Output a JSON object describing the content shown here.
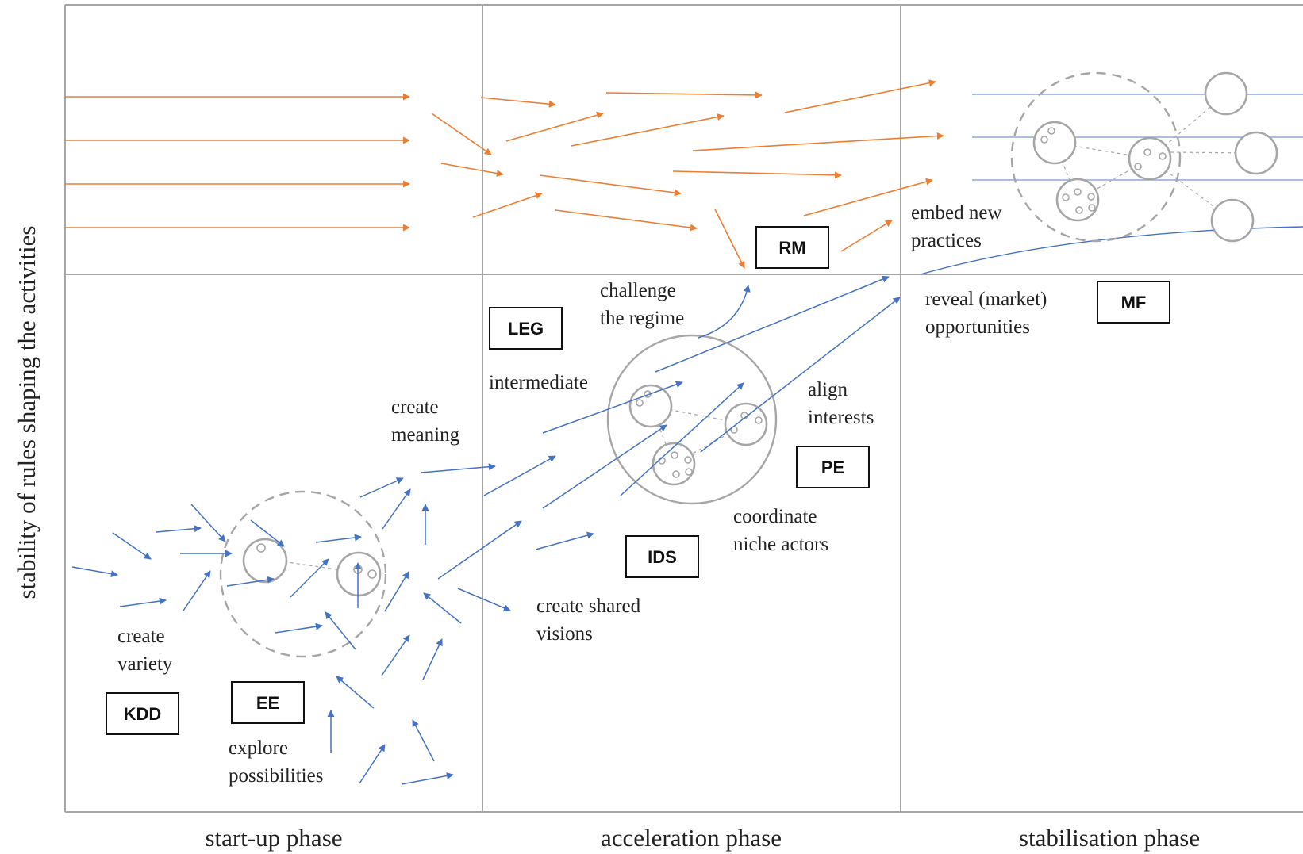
{
  "axes": {
    "y_label": "stability of rules shaping the activities",
    "phases": [
      "start-up phase",
      "acceleration phase",
      "stabilisation phase"
    ]
  },
  "boxes": {
    "kdd": "KDD",
    "ee": "EE",
    "leg": "LEG",
    "rm": "RM",
    "ids": "IDS",
    "pe": "PE",
    "mf": "MF"
  },
  "annotations": {
    "create_variety": [
      "create",
      "variety"
    ],
    "explore_possibilities": [
      "explore",
      "possibilities"
    ],
    "create_meaning": [
      "create",
      "meaning"
    ],
    "intermediate": "intermediate",
    "challenge_regime": [
      "challenge",
      "the regime"
    ],
    "align_interests": [
      "align",
      "interests"
    ],
    "coordinate_niche": [
      "coordinate",
      "niche actors"
    ],
    "create_shared_visions": [
      "create shared",
      "visions"
    ],
    "embed_new_practices": [
      "embed new",
      "practices"
    ],
    "reveal_opportunities": [
      "reveal (market)",
      "opportunities"
    ]
  },
  "colors": {
    "orange_arrow": "#ED7D31",
    "blue_arrow": "#4472C4",
    "grid_line": "#A6A6A6",
    "circle_gray": "#9E9E9E"
  }
}
